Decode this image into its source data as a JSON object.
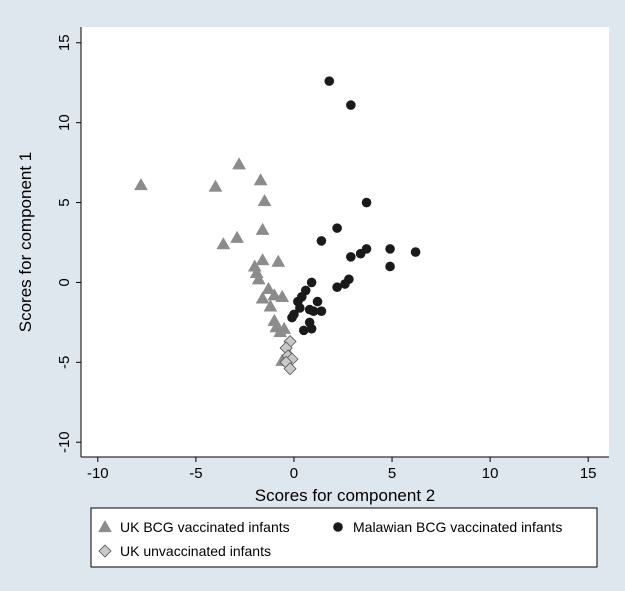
{
  "chart_data": {
    "type": "scatter",
    "xlabel": "Scores for component 2",
    "ylabel": "Scores for component 1",
    "xlim": [
      -10.5,
      15.5
    ],
    "ylim": [
      -10.3,
      15.8
    ],
    "xticks": [
      -10,
      -5,
      0,
      5,
      10,
      15
    ],
    "yticks": [
      -10,
      -5,
      0,
      5,
      10,
      15
    ],
    "legend_position": "bottom",
    "series": [
      {
        "name": "UK BCG vaccinated infants",
        "marker": "triangle",
        "color": "#8c8c8c",
        "points": [
          [
            -7.8,
            6.1
          ],
          [
            -4.0,
            6.0
          ],
          [
            -2.8,
            7.4
          ],
          [
            -1.7,
            6.4
          ],
          [
            -1.5,
            5.1
          ],
          [
            -3.6,
            2.4
          ],
          [
            -2.9,
            2.8
          ],
          [
            -1.6,
            3.3
          ],
          [
            -1.6,
            1.4
          ],
          [
            -0.8,
            1.3
          ],
          [
            -2.0,
            1.0
          ],
          [
            -1.9,
            0.6
          ],
          [
            -1.8,
            0.2
          ],
          [
            -1.3,
            -0.4
          ],
          [
            -1.0,
            -0.8
          ],
          [
            -1.6,
            -1.0
          ],
          [
            -1.2,
            -1.5
          ],
          [
            -0.6,
            -0.9
          ],
          [
            -1.0,
            -2.4
          ],
          [
            -0.9,
            -2.8
          ],
          [
            -0.7,
            -3.1
          ],
          [
            -0.5,
            -2.9
          ],
          [
            -0.6,
            -4.9
          ],
          [
            -0.2,
            -4.6
          ]
        ]
      },
      {
        "name": "Malawian BCG vaccinated infants",
        "marker": "circle",
        "color": "#1a1a1a",
        "points": [
          [
            1.8,
            12.6
          ],
          [
            2.9,
            11.1
          ],
          [
            3.7,
            5.0
          ],
          [
            2.2,
            3.4
          ],
          [
            1.4,
            2.6
          ],
          [
            4.9,
            2.1
          ],
          [
            6.2,
            1.9
          ],
          [
            3.7,
            2.1
          ],
          [
            3.4,
            1.8
          ],
          [
            2.9,
            1.6
          ],
          [
            4.9,
            1.0
          ],
          [
            2.8,
            0.2
          ],
          [
            2.6,
            -0.1
          ],
          [
            2.2,
            -0.3
          ],
          [
            0.9,
            0.0
          ],
          [
            0.6,
            -0.5
          ],
          [
            0.4,
            -0.9
          ],
          [
            0.2,
            -1.2
          ],
          [
            0.3,
            -1.6
          ],
          [
            0.0,
            -2.0
          ],
          [
            -0.1,
            -2.2
          ],
          [
            1.2,
            -1.2
          ],
          [
            0.8,
            -1.7
          ],
          [
            1.0,
            -1.8
          ],
          [
            1.4,
            -1.8
          ],
          [
            0.8,
            -2.5
          ],
          [
            0.9,
            -2.9
          ],
          [
            0.5,
            -3.0
          ]
        ]
      },
      {
        "name": "UK unvaccinated infants",
        "marker": "diamond",
        "color": "#c8c8c8",
        "points": [
          [
            -0.2,
            -3.7
          ],
          [
            -0.4,
            -4.1
          ],
          [
            -0.3,
            -4.6
          ],
          [
            -0.1,
            -4.8
          ],
          [
            -0.4,
            -5.0
          ],
          [
            -0.2,
            -5.4
          ]
        ]
      }
    ]
  }
}
